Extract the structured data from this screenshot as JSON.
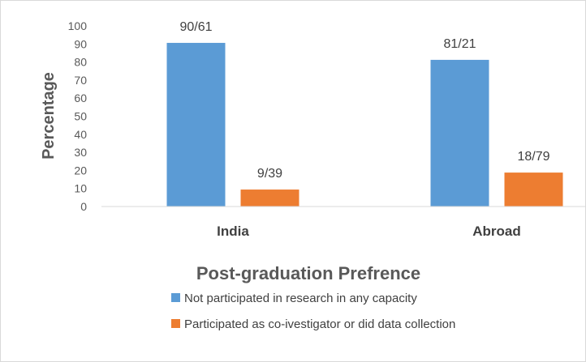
{
  "chart_data": {
    "type": "bar",
    "categories": [
      "India",
      "Abroad"
    ],
    "series": [
      {
        "name": "Not participated in research in any capacity",
        "values": [
          90.61,
          81.21
        ],
        "labels": [
          "90/61",
          "81/21"
        ],
        "color": "#5b9bd5"
      },
      {
        "name": "Participated as co-ivestigator or did data collection",
        "values": [
          9.39,
          18.79
        ],
        "labels": [
          "9/39",
          "18/79"
        ],
        "color": "#ed7d31"
      }
    ],
    "yticks": [
      "0",
      "10",
      "20",
      "30",
      "40",
      "50",
      "60",
      "70",
      "80",
      "90",
      "100"
    ],
    "ylim": [
      0,
      100
    ],
    "ylabel": "Percentage",
    "legend_title": "Post-graduation Prefrence",
    "legend_position": "bottom",
    "grid": false
  }
}
